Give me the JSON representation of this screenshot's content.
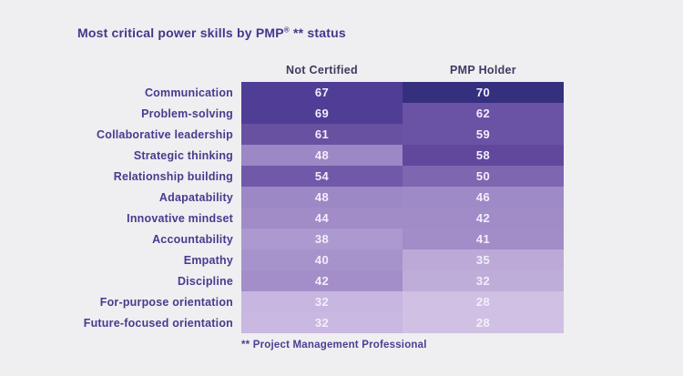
{
  "title": {
    "prefix": "Most critical power skills by PMP",
    "registered_mark": "®",
    "suffix": " ** status"
  },
  "footnote": "** Project Management Professional",
  "colors": {
    "background": "#efeef1",
    "title_text": "#43388a",
    "header_text": "#3e3a5e",
    "label_text": "#473c8e",
    "footnote_text": "#4a3f93",
    "cell_text": "#f2eefb"
  },
  "chart_data": {
    "type": "heatmap",
    "title": "Most critical power skills by PMP® ** status",
    "columns": [
      "Not Certified",
      "PMP Holder"
    ],
    "categories": [
      "Communication",
      "Problem-solving",
      "Collaborative leadership",
      "Strategic thinking",
      "Relationship building",
      "Adapatability",
      "Innovative mindset",
      "Accountability",
      "Empathy",
      "Discipline",
      "For-purpose orientation",
      "Future-focused orientation"
    ],
    "series": [
      {
        "name": "Not Certified",
        "values": [
          67,
          69,
          61,
          48,
          54,
          48,
          44,
          38,
          40,
          42,
          32,
          32
        ],
        "cell_colors": [
          "#4f3d96",
          "#4f3d96",
          "#6951a2",
          "#9c88c4",
          "#7159a9",
          "#9c88c4",
          "#a18cc8",
          "#ab99cf",
          "#a793cb",
          "#a38ec9",
          "#c7b6df",
          "#c9b8e1"
        ]
      },
      {
        "name": "PMP Holder",
        "values": [
          70,
          62,
          59,
          58,
          50,
          46,
          42,
          41,
          35,
          32,
          28,
          28
        ],
        "cell_colors": [
          "#34307e",
          "#6a52a4",
          "#6a52a4",
          "#61489d",
          "#7e66b1",
          "#9e8ac6",
          "#a18cc8",
          "#a28dc8",
          "#bca9d7",
          "#bfadd9",
          "#cfc0e4",
          "#d0c1e4"
        ]
      }
    ],
    "value_range": [
      28,
      70
    ],
    "legend_position": "none",
    "grid": false,
    "footnote": "** Project Management Professional"
  }
}
